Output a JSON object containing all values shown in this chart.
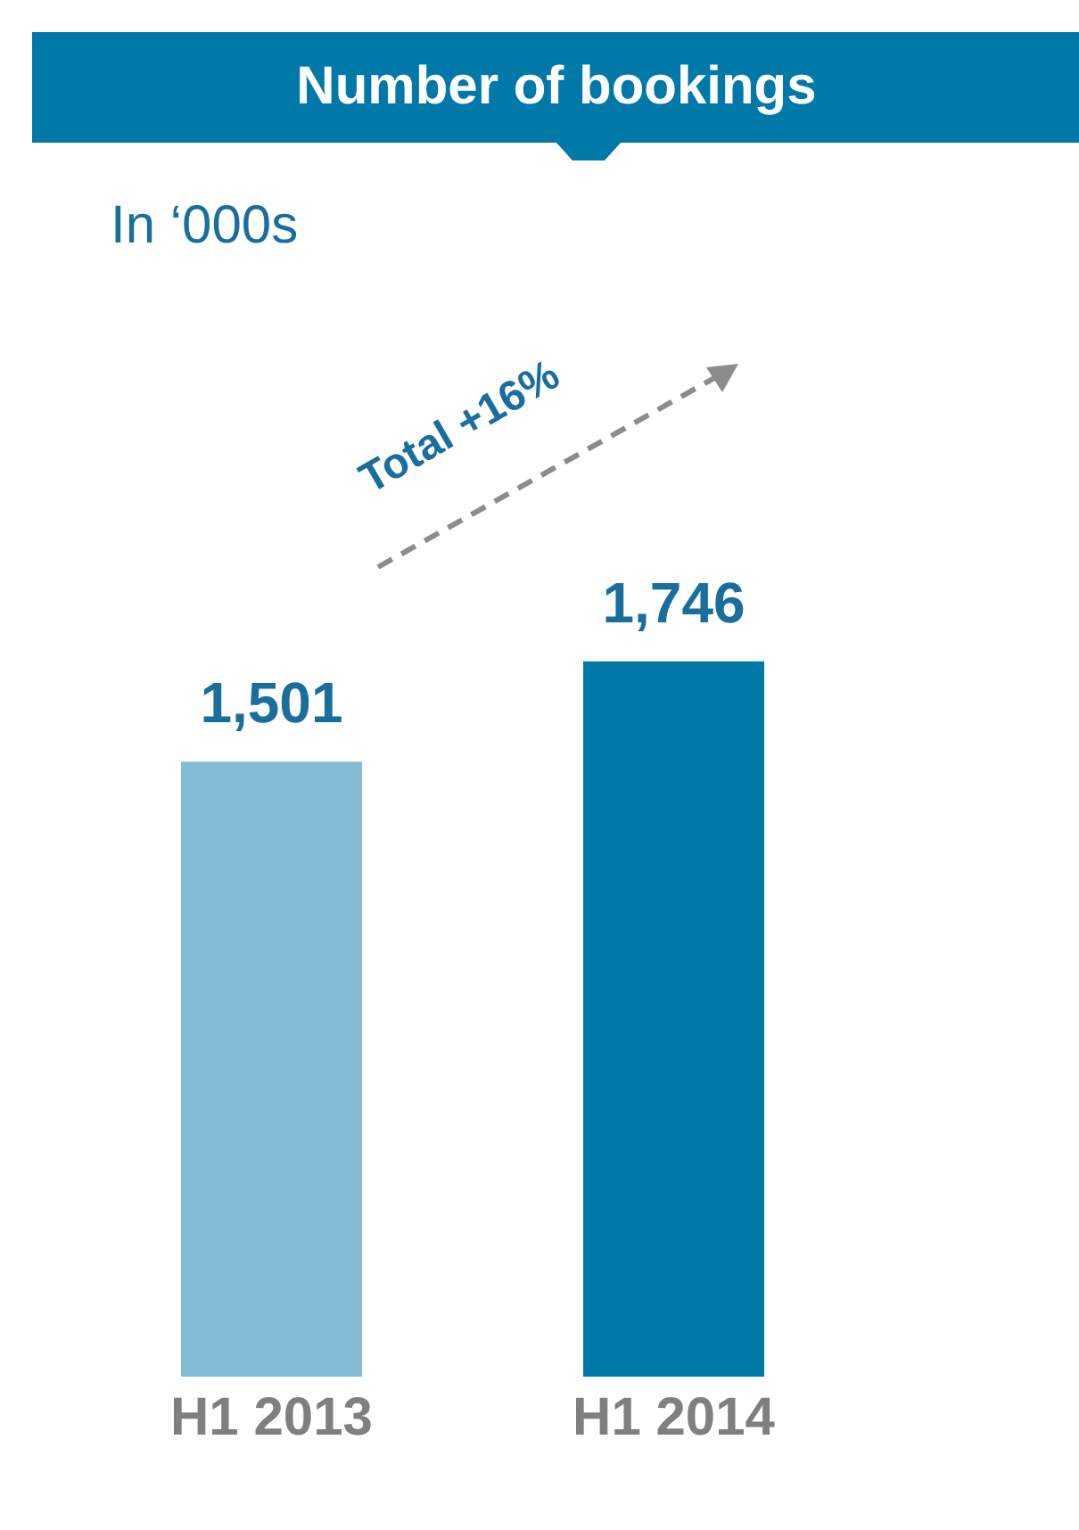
{
  "chart_data": {
    "type": "bar",
    "title": "Number of bookings",
    "subtitle": "In ‘000s",
    "categories": [
      "H1 2013",
      "H1 2014"
    ],
    "values": [
      1501,
      1746
    ],
    "colors": [
      "#85bcd5",
      "#0079a9"
    ],
    "value_labels": [
      "1,501",
      "1,746"
    ],
    "annotations": [
      "Total +16%"
    ]
  }
}
